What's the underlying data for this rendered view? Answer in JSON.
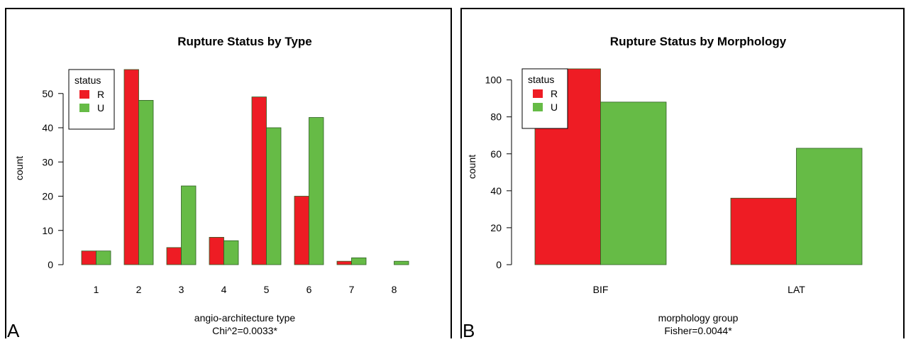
{
  "colors": {
    "R": "#ee1c24",
    "U": "#66bb46",
    "bar_stroke": "#2e5e22"
  },
  "chart_data": [
    {
      "type": "bar",
      "panel_letter": "A",
      "title": "Rupture Status by Type",
      "xlabel": "angio-architecture type",
      "xlabel2": "Chi^2=0.0033*",
      "ylabel": "count",
      "categories": [
        "1",
        "2",
        "3",
        "4",
        "5",
        "6",
        "7",
        "8"
      ],
      "series": [
        {
          "name": "R",
          "values": [
            4,
            57,
            5,
            8,
            49,
            20,
            1,
            0
          ]
        },
        {
          "name": "U",
          "values": [
            4,
            48,
            23,
            7,
            40,
            43,
            2,
            1
          ]
        }
      ],
      "ylim": [
        0,
        57
      ],
      "yticks": [
        0,
        10,
        20,
        30,
        40,
        50
      ],
      "legend": {
        "title": "status",
        "placement": "top-left"
      },
      "grid": false
    },
    {
      "type": "bar",
      "panel_letter": "B",
      "title": "Rupture Status by Morphology",
      "xlabel": "morphology group",
      "xlabel2": "Fisher=0.0044*",
      "ylabel": "count",
      "categories": [
        "BIF",
        "LAT"
      ],
      "series": [
        {
          "name": "R",
          "values": [
            106,
            36
          ]
        },
        {
          "name": "U",
          "values": [
            88,
            63
          ]
        }
      ],
      "ylim": [
        0,
        106
      ],
      "yticks": [
        0,
        20,
        40,
        60,
        80,
        100
      ],
      "legend": {
        "title": "status",
        "placement": "top-left"
      },
      "grid": false
    }
  ]
}
